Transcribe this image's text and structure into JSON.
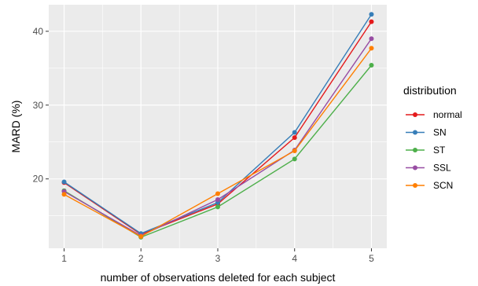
{
  "chart_data": {
    "type": "line",
    "xlabel": "number of observations deleted for each subject",
    "ylabel": "MARD (%)",
    "x": [
      1,
      2,
      3,
      4,
      5
    ],
    "xticks": [
      "1",
      "2",
      "3",
      "4",
      "5"
    ],
    "yticks": [
      20,
      30,
      40
    ],
    "xlim": [
      0.8,
      5.2
    ],
    "ylim": [
      10.6,
      43.6
    ],
    "grid": true,
    "legend": {
      "title": "distribution",
      "position": "right"
    },
    "series": [
      {
        "name": "normal",
        "color": "#e41a1c",
        "values": [
          19.5,
          12.5,
          16.6,
          25.6,
          41.3
        ]
      },
      {
        "name": "SN",
        "color": "#377eb8",
        "values": [
          19.6,
          12.6,
          16.8,
          26.3,
          42.3
        ]
      },
      {
        "name": "ST",
        "color": "#4daf4a",
        "values": [
          18.4,
          12.1,
          16.2,
          22.7,
          35.4
        ]
      },
      {
        "name": "SSL",
        "color": "#984ea3",
        "values": [
          18.3,
          12.3,
          17.2,
          23.9,
          39.0
        ]
      },
      {
        "name": "SCN",
        "color": "#ff7f00",
        "values": [
          17.9,
          12.2,
          18.0,
          23.8,
          37.7
        ]
      }
    ]
  }
}
